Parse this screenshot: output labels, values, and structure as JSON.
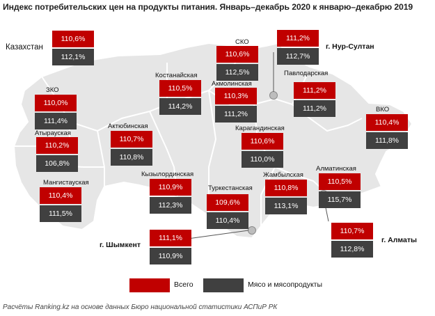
{
  "title": "Индекс потребительских цен на продукты питания. Январь–декабрь 2020 к январю–декабрю 2019",
  "colors": {
    "total": "#c00000",
    "meat": "#404040",
    "map_fill": "#e6e6e6",
    "map_stroke": "#ffffff"
  },
  "legend": {
    "total": "Всего",
    "meat": "Мясо и мясопродукты"
  },
  "source": "Расчёты Ranking.kz на основе данных Бюро национальной статистики АСПиР РК",
  "regions": [
    {
      "id": "kazakhstan",
      "name": "Казахстан",
      "total": "110,6%",
      "meat": "112,1%"
    },
    {
      "id": "sko",
      "name": "СКО",
      "total": "110,6%",
      "meat": "112,5%"
    },
    {
      "id": "nur-sultan",
      "name": "г. Нур-Султан",
      "total": "111,2%",
      "meat": "112,7%"
    },
    {
      "id": "kostanay",
      "name": "Костанайская",
      "total": "110,5%",
      "meat": "114,2%"
    },
    {
      "id": "akmola",
      "name": "Акмолинская",
      "total": "110,3%",
      "meat": "111,2%"
    },
    {
      "id": "pavlodar",
      "name": "Павлодарская",
      "total": "111,2%",
      "meat": "111,2%"
    },
    {
      "id": "zko",
      "name": "ЗКО",
      "total": "110,0%",
      "meat": "111,4%"
    },
    {
      "id": "vko",
      "name": "ВКО",
      "total": "110,4%",
      "meat": "111,8%"
    },
    {
      "id": "atyrau",
      "name": "Атырауская",
      "total": "110,2%",
      "meat": "106,8%"
    },
    {
      "id": "aktobe",
      "name": "Актюбинская",
      "total": "110,7%",
      "meat": "110,8%"
    },
    {
      "id": "karaganda",
      "name": "Карагандинская",
      "total": "110,6%",
      "meat": "110,0%"
    },
    {
      "id": "mangystau",
      "name": "Мангистауская",
      "total": "110,4%",
      "meat": "111,5%"
    },
    {
      "id": "kyzylorda",
      "name": "Кызылординская",
      "total": "110,9%",
      "meat": "112,3%"
    },
    {
      "id": "turkestan",
      "name": "Туркестанская",
      "total": "109,6%",
      "meat": "110,4%"
    },
    {
      "id": "zhambyl",
      "name": "Жамбылская",
      "total": "110,8%",
      "meat": "113,1%"
    },
    {
      "id": "almaty-obl",
      "name": "Алматинская",
      "total": "110,5%",
      "meat": "115,7%"
    },
    {
      "id": "shymkent",
      "name": "г. Шымкент",
      "total": "111,1%",
      "meat": "110,9%"
    },
    {
      "id": "almaty",
      "name": "г. Алматы",
      "total": "110,7%",
      "meat": "112,8%"
    }
  ]
}
